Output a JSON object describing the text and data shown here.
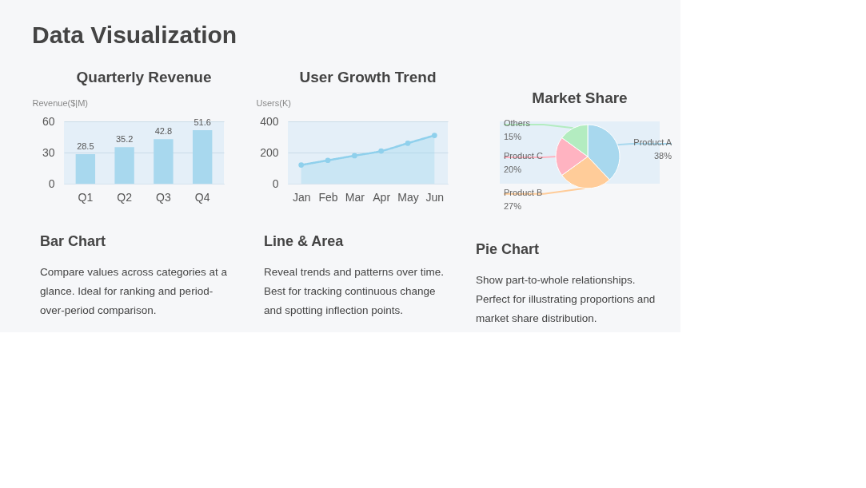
{
  "chart_data": [
    {
      "type": "bar",
      "title": "Quarterly Revenue",
      "ylabel": "Revenue($|M)",
      "categories": [
        "Q1",
        "Q2",
        "Q3",
        "Q4"
      ],
      "values": [
        28.5,
        35.2,
        42.8,
        51.6
      ],
      "color": "#a8d8ee",
      "ylim": [
        0,
        60
      ],
      "yticks": [
        0,
        30,
        60
      ],
      "grid": "y",
      "data_labels": true,
      "annotations": [
        "Data Visualization",
        "Bar Chart",
        "Compare values across categories at a",
        "glance. Ideal for ranking and period-",
        "over-period comparison."
      ]
    },
    {
      "type": "area",
      "title": "User Growth Trend",
      "ylabel": "Users(K)",
      "categories": [
        "Jan",
        "Feb",
        "Mar",
        "Apr",
        "May",
        "Jun"
      ],
      "series": [
        {
          "color": "#8fd0ec",
          "values": [
            120,
            150,
            180,
            210,
            260,
            310
          ]
        }
      ],
      "ylim": [
        0,
        400
      ],
      "yticks": [
        0,
        200,
        400
      ],
      "grid": "y",
      "marker": "circle",
      "annotations": [
        "Line & Area",
        "Reveal trends and patterns over time.",
        "Best for tracking continuous change",
        "and spotting inflection points."
      ]
    },
    {
      "type": "pie",
      "title": "Market Share",
      "categories": [
        "Product A",
        "Product B",
        "Product C",
        "Others"
      ],
      "values": [
        38,
        27,
        20,
        15
      ],
      "colors": [
        "#a8d8ee",
        "#ffcc99",
        "#ffb3c1",
        "#b3ecc0"
      ],
      "value_labels": [
        "38%",
        "27%",
        "20%",
        "15%"
      ],
      "annotations": [
        "Pie Chart",
        "Show part-to-whole relationships.",
        "Perfect for illustrating proportions and",
        "market share distribution."
      ]
    }
  ]
}
